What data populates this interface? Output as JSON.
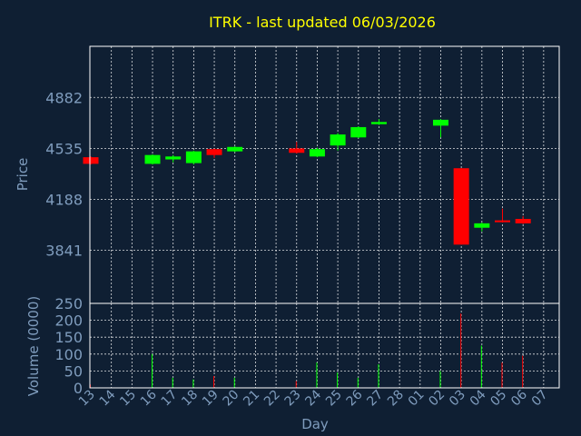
{
  "chart_data": {
    "type": "candlestick",
    "title": "ITRK - last updated 06/03/2026",
    "price_panel": {
      "ylabel": "Price",
      "y_ticks": [
        4882,
        4535,
        4188,
        3841
      ],
      "ylim": [
        3480,
        5230
      ],
      "grid": true
    },
    "volume_panel": {
      "ylabel": "Volume (0000)",
      "y_ticks": [
        0,
        50,
        100,
        150,
        200,
        250
      ],
      "ylim": [
        0,
        250
      ],
      "grid": true
    },
    "xlabel": "Day",
    "x_ticks": [
      "13",
      "14",
      "15",
      "16",
      "17",
      "18",
      "19",
      "20",
      "21",
      "22",
      "23",
      "24",
      "25",
      "26",
      "27",
      "28",
      "01",
      "02",
      "03",
      "04",
      "05",
      "06",
      "07"
    ],
    "candles": [
      {
        "day": "13",
        "open": 4475,
        "close": 4430,
        "high": 4480,
        "low": 4425,
        "volume": 10
      },
      {
        "day": "16",
        "open": 4430,
        "close": 4490,
        "high": 4495,
        "low": 4425,
        "volume": 100
      },
      {
        "day": "17",
        "open": 4460,
        "close": 4480,
        "high": 4490,
        "low": 4440,
        "volume": 30
      },
      {
        "day": "18",
        "open": 4435,
        "close": 4515,
        "high": 4520,
        "low": 4425,
        "volume": 25
      },
      {
        "day": "19",
        "open": 4530,
        "close": 4490,
        "high": 4535,
        "low": 4470,
        "volume": 35
      },
      {
        "day": "20",
        "open": 4515,
        "close": 4545,
        "high": 4550,
        "low": 4510,
        "volume": 30
      },
      {
        "day": "23",
        "open": 4535,
        "close": 4505,
        "high": 4580,
        "low": 4500,
        "volume": 20
      },
      {
        "day": "24",
        "open": 4480,
        "close": 4530,
        "high": 4540,
        "low": 4475,
        "volume": 75
      },
      {
        "day": "25",
        "open": 4555,
        "close": 4630,
        "high": 4640,
        "low": 4520,
        "volume": 45
      },
      {
        "day": "26",
        "open": 4610,
        "close": 4680,
        "high": 4685,
        "low": 4605,
        "volume": 30
      },
      {
        "day": "27",
        "open": 4700,
        "close": 4715,
        "high": 4735,
        "low": 4695,
        "volume": 70
      },
      {
        "day": "02",
        "open": 4690,
        "close": 4730,
        "high": 4735,
        "low": 4610,
        "volume": 50
      },
      {
        "day": "03",
        "open": 4400,
        "close": 3880,
        "high": 4400,
        "low": 3880,
        "volume": 220
      },
      {
        "day": "04",
        "open": 3995,
        "close": 4025,
        "high": 4030,
        "low": 3970,
        "volume": 125
      },
      {
        "day": "05",
        "open": 4045,
        "close": 4040,
        "high": 4125,
        "low": 4030,
        "volume": 75
      },
      {
        "day": "06",
        "open": 4055,
        "close": 4025,
        "high": 4075,
        "low": 4020,
        "volume": 95
      }
    ]
  },
  "colors": {
    "background": "#0f1f33",
    "up": "#00ff00",
    "down": "#ff0000",
    "title": "#ffff00",
    "axis": "#7f9cbd"
  }
}
